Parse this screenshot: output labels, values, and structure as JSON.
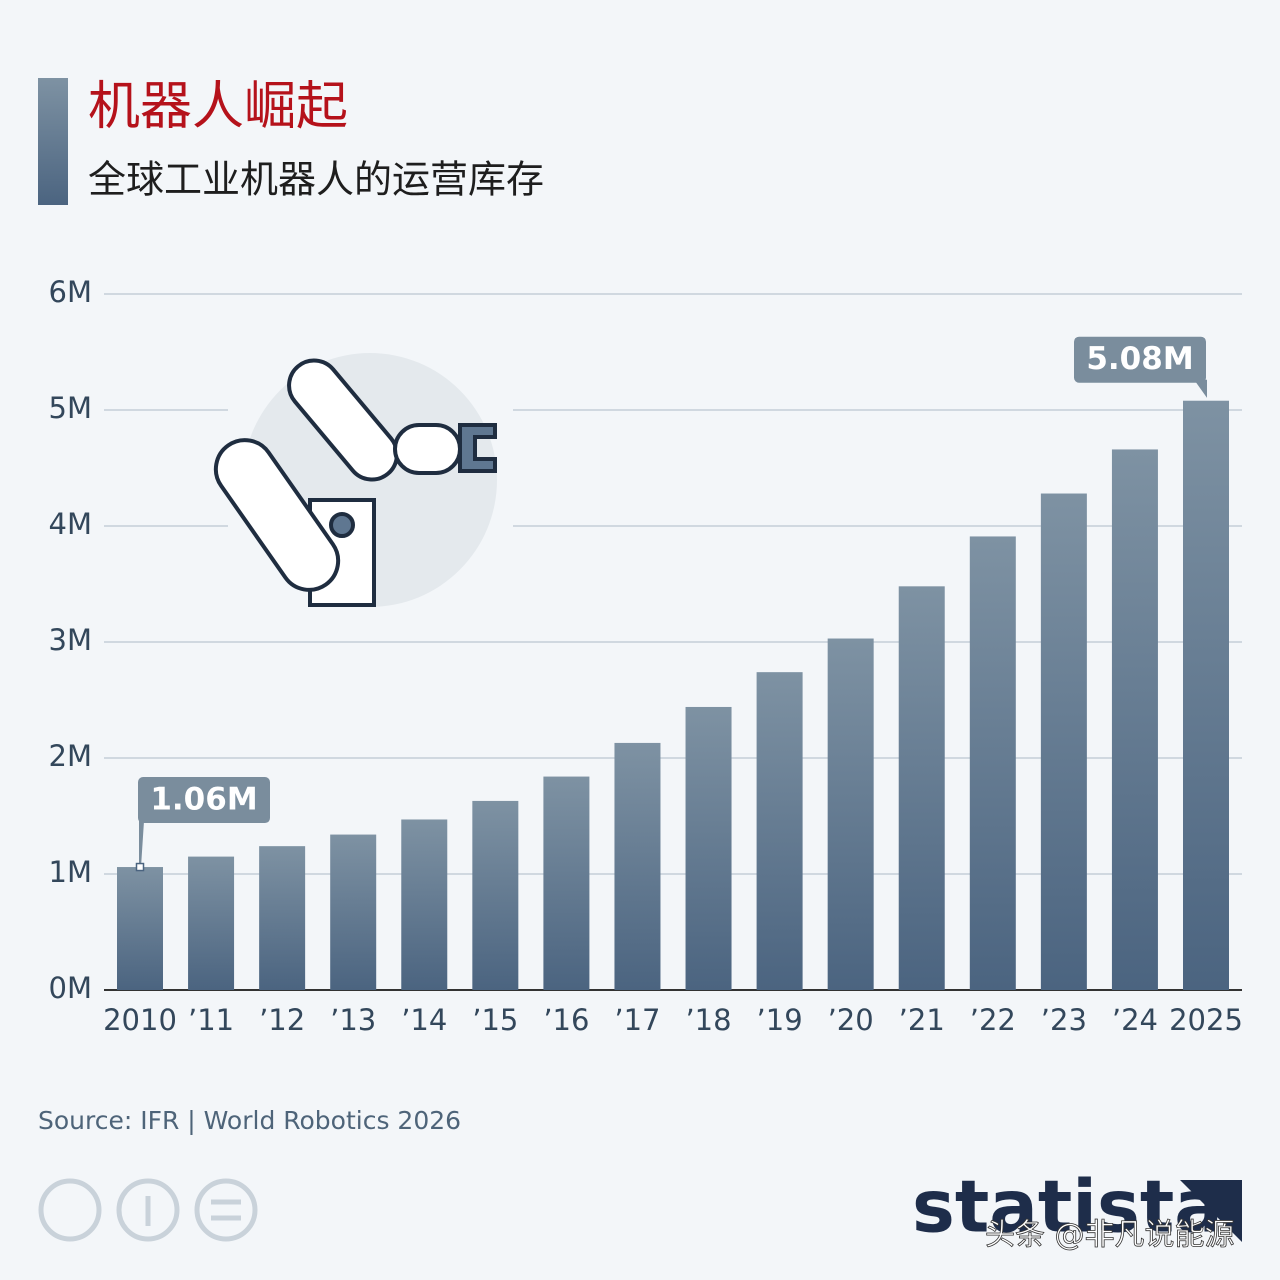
{
  "chart_data": {
    "type": "bar",
    "title": "机器人崛起",
    "subtitle": "全球工业机器人的运营库存",
    "categories": [
      "2010",
      "’11",
      "’12",
      "’13",
      "’14",
      "’15",
      "’16",
      "’17",
      "’18",
      "’19",
      "’20",
      "’21",
      "’22",
      "’23",
      "’24",
      "2025"
    ],
    "values": [
      1.06,
      1.15,
      1.24,
      1.34,
      1.47,
      1.63,
      1.84,
      2.13,
      2.44,
      2.74,
      3.03,
      3.48,
      3.91,
      4.28,
      4.66,
      5.08
    ],
    "value_labels": [
      "1.06M",
      null,
      null,
      null,
      null,
      null,
      null,
      null,
      null,
      null,
      null,
      null,
      null,
      null,
      null,
      "5.08M"
    ],
    "color": "#5f7791",
    "ylim": [
      0,
      6
    ],
    "yticks": [
      {
        "value": 0,
        "label": "0M"
      },
      {
        "value": 1,
        "label": "1M"
      },
      {
        "value": 2,
        "label": "2M"
      },
      {
        "value": 3,
        "label": "3M"
      },
      {
        "value": 4,
        "label": "4M"
      },
      {
        "value": 5,
        "label": "5M"
      },
      {
        "value": 6,
        "label": "6M"
      }
    ],
    "grid": true,
    "source": "Source: IFR | World Robotics 2026"
  },
  "footer": {
    "logo": "statista",
    "watermark": "头条 @非凡说能源"
  }
}
